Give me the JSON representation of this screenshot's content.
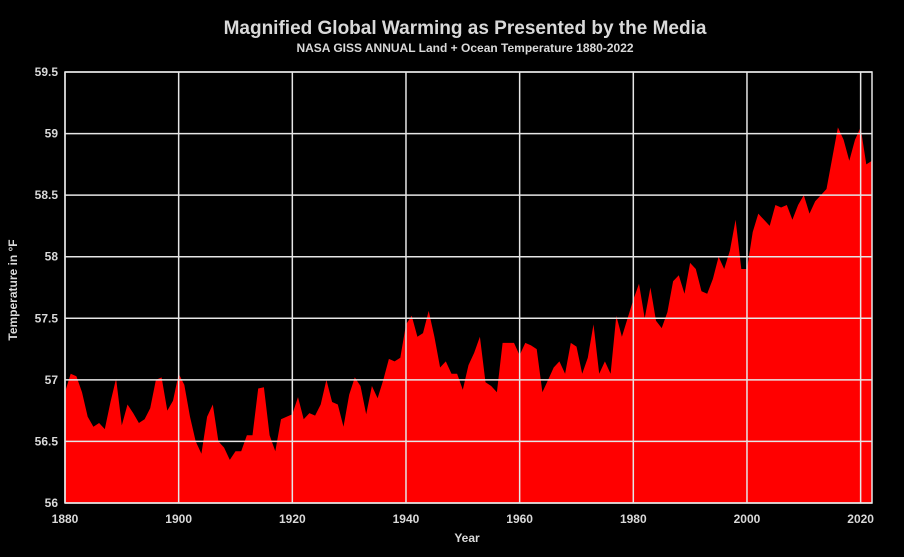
{
  "chart_data": {
    "type": "area",
    "title": "Magnified Global Warming as Presented by the Media",
    "subtitle": "NASA GISS ANNUAL Land + Ocean Temperature 1880-2022",
    "xlabel": "Year",
    "ylabel": "Temperature in °F",
    "xlim": [
      1880,
      2022
    ],
    "ylim": [
      56,
      59.5
    ],
    "xticks": [
      1880,
      1900,
      1920,
      1940,
      1960,
      1980,
      2000,
      2020
    ],
    "yticks": [
      56,
      56.5,
      57,
      57.5,
      58,
      58.5,
      59,
      59.5
    ],
    "ytick_labels": [
      "56",
      "56.5",
      "57",
      "57.5",
      "58",
      "58.5",
      "59",
      "59.5"
    ],
    "grid": true,
    "colors": {
      "fill": "#ff0000",
      "background": "#000000",
      "grid": "#e6e6e6",
      "text": "#d9d9d9"
    },
    "x": [
      1880,
      1881,
      1882,
      1883,
      1884,
      1885,
      1886,
      1887,
      1888,
      1889,
      1890,
      1891,
      1892,
      1893,
      1894,
      1895,
      1896,
      1897,
      1898,
      1899,
      1900,
      1901,
      1902,
      1903,
      1904,
      1905,
      1906,
      1907,
      1908,
      1909,
      1910,
      1911,
      1912,
      1913,
      1914,
      1915,
      1916,
      1917,
      1918,
      1919,
      1920,
      1921,
      1922,
      1923,
      1924,
      1925,
      1926,
      1927,
      1928,
      1929,
      1930,
      1931,
      1932,
      1933,
      1934,
      1935,
      1936,
      1937,
      1938,
      1939,
      1940,
      1941,
      1942,
      1943,
      1944,
      1945,
      1946,
      1947,
      1948,
      1949,
      1950,
      1951,
      1952,
      1953,
      1954,
      1955,
      1956,
      1957,
      1958,
      1959,
      1960,
      1961,
      1962,
      1963,
      1964,
      1965,
      1966,
      1967,
      1968,
      1969,
      1970,
      1971,
      1972,
      1973,
      1974,
      1975,
      1976,
      1977,
      1978,
      1979,
      1980,
      1981,
      1982,
      1983,
      1984,
      1985,
      1986,
      1987,
      1988,
      1989,
      1990,
      1991,
      1992,
      1993,
      1994,
      1995,
      1996,
      1997,
      1998,
      1999,
      2000,
      2001,
      2002,
      2003,
      2004,
      2005,
      2006,
      2007,
      2008,
      2009,
      2010,
      2011,
      2012,
      2013,
      2014,
      2015,
      2016,
      2017,
      2018,
      2019,
      2020,
      2021,
      2022
    ],
    "values": [
      56.9,
      57.05,
      57.03,
      56.9,
      56.7,
      56.62,
      56.65,
      56.6,
      56.82,
      57.01,
      56.63,
      56.8,
      56.73,
      56.65,
      56.68,
      56.77,
      57.0,
      57.02,
      56.75,
      56.83,
      57.05,
      56.96,
      56.7,
      56.5,
      56.4,
      56.7,
      56.8,
      56.5,
      56.45,
      56.35,
      56.42,
      56.42,
      56.55,
      56.55,
      56.93,
      56.94,
      56.55,
      56.42,
      56.68,
      56.7,
      56.72,
      56.86,
      56.68,
      56.73,
      56.71,
      56.8,
      57.0,
      56.82,
      56.8,
      56.62,
      56.88,
      57.02,
      56.95,
      56.72,
      56.95,
      56.85,
      57.0,
      57.17,
      57.15,
      57.18,
      57.45,
      57.52,
      57.35,
      57.38,
      57.56,
      57.35,
      57.1,
      57.15,
      57.05,
      57.05,
      56.92,
      57.12,
      57.22,
      57.35,
      56.98,
      56.95,
      56.9,
      57.3,
      57.3,
      57.3,
      57.2,
      57.3,
      57.28,
      57.25,
      56.9,
      57.0,
      57.1,
      57.15,
      57.05,
      57.3,
      57.27,
      57.05,
      57.18,
      57.45,
      57.05,
      57.15,
      57.05,
      57.52,
      57.35,
      57.5,
      57.65,
      57.78,
      57.5,
      57.75,
      57.48,
      57.42,
      57.55,
      57.8,
      57.85,
      57.7,
      57.95,
      57.9,
      57.72,
      57.7,
      57.82,
      58.0,
      57.9,
      58.05,
      58.3,
      57.9,
      57.9,
      58.2,
      58.35,
      58.3,
      58.25,
      58.42,
      58.4,
      58.42,
      58.3,
      58.42,
      58.5,
      58.35,
      58.45,
      58.5,
      58.55,
      58.8,
      59.05,
      58.95,
      58.78,
      58.95,
      59.05,
      58.75,
      58.78
    ]
  }
}
